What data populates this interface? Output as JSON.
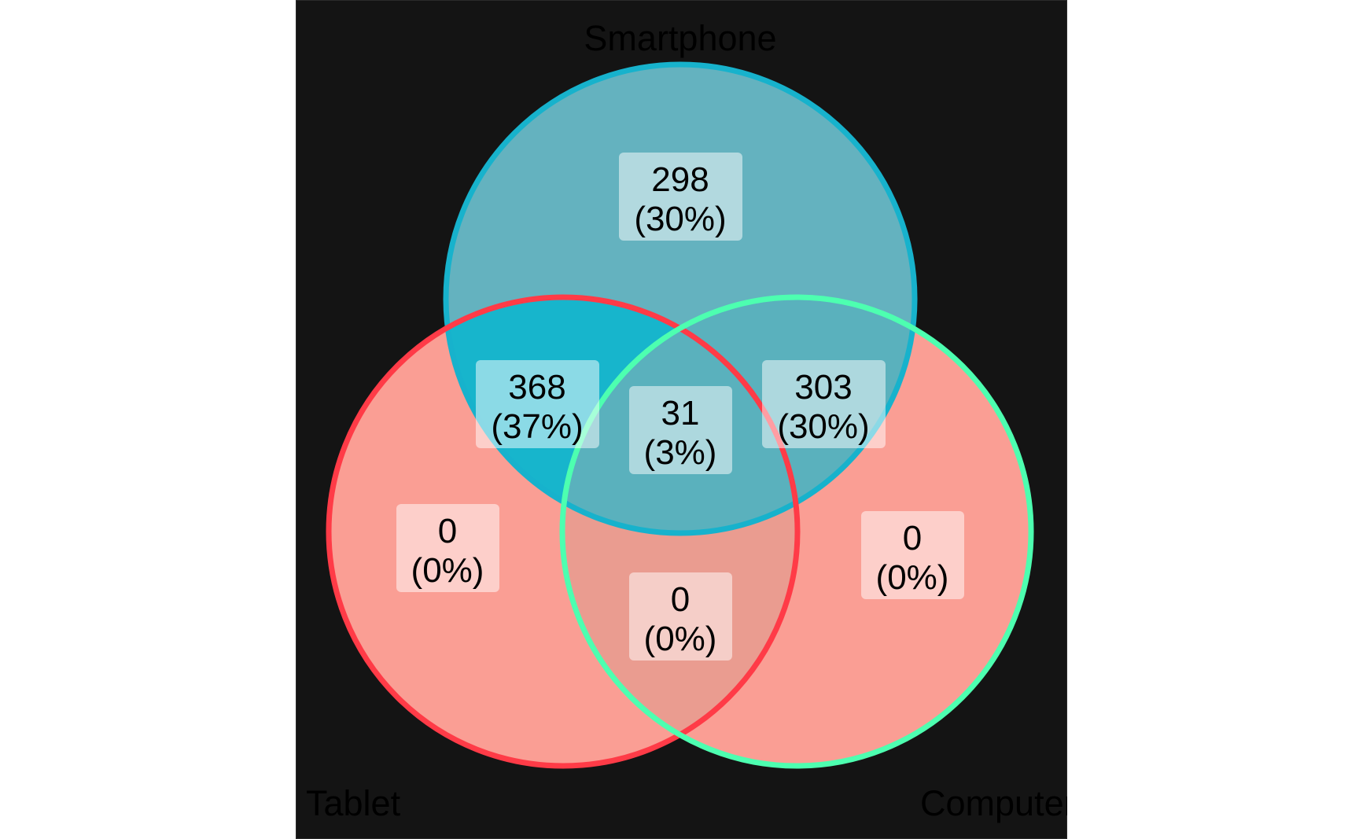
{
  "sets": [
    {
      "key": "smartphone",
      "label": "Smartphone",
      "color": "#17B2CC"
    },
    {
      "key": "tablet",
      "label": "Tablet",
      "color": "#FF3B47"
    },
    {
      "key": "computer",
      "label": "Computer",
      "color": "#4DFFB0"
    }
  ],
  "fill_colors": {
    "low_count": "#FA9E94",
    "mid_count": "#64B2BF",
    "high_count": "#17B5CC",
    "intersection_tablet_computer": "#EA9C90"
  },
  "regions": [
    {
      "key": "smartphone_only",
      "count": "298",
      "percent": "(30%)"
    },
    {
      "key": "smartphone_tablet",
      "count": "368",
      "percent": "(37%)"
    },
    {
      "key": "smartphone_computer",
      "count": "303",
      "percent": "(30%)"
    },
    {
      "key": "all_three",
      "count": "31",
      "percent": "(3%)"
    },
    {
      "key": "tablet_only",
      "count": "0",
      "percent": "(0%)"
    },
    {
      "key": "computer_only",
      "count": "0",
      "percent": "(0%)"
    },
    {
      "key": "tablet_computer",
      "count": "0",
      "percent": "(0%)"
    }
  ]
}
